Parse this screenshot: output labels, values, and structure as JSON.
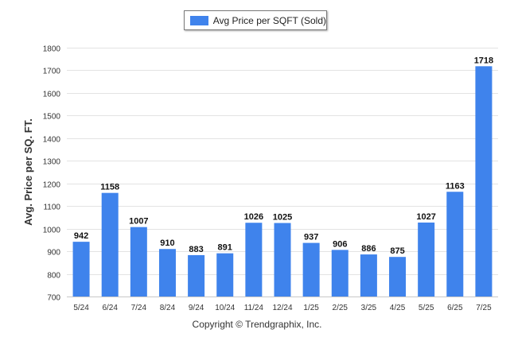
{
  "chart_data": {
    "type": "bar",
    "categories": [
      "5/24",
      "6/24",
      "7/24",
      "8/24",
      "9/24",
      "10/24",
      "11/24",
      "12/24",
      "1/25",
      "2/25",
      "3/25",
      "4/25",
      "5/25",
      "6/25",
      "7/25"
    ],
    "series": [
      {
        "name": "Avg Price per SQFT (Sold)",
        "values": [
          942,
          1158,
          1007,
          910,
          883,
          891,
          1026,
          1025,
          937,
          906,
          886,
          875,
          1027,
          1163,
          1718
        ],
        "color": "#3f83ec"
      }
    ],
    "ylabel": "Avg. Price per SQ. FT.",
    "ylim": [
      700,
      1800
    ],
    "yticks": [
      700,
      800,
      900,
      1000,
      1100,
      1200,
      1300,
      1400,
      1500,
      1600,
      1700,
      1800
    ],
    "grid": true,
    "legend": "top-center",
    "data_labels": true
  },
  "footer": {
    "copyright": "Copyright © Trendgraphix, Inc."
  }
}
